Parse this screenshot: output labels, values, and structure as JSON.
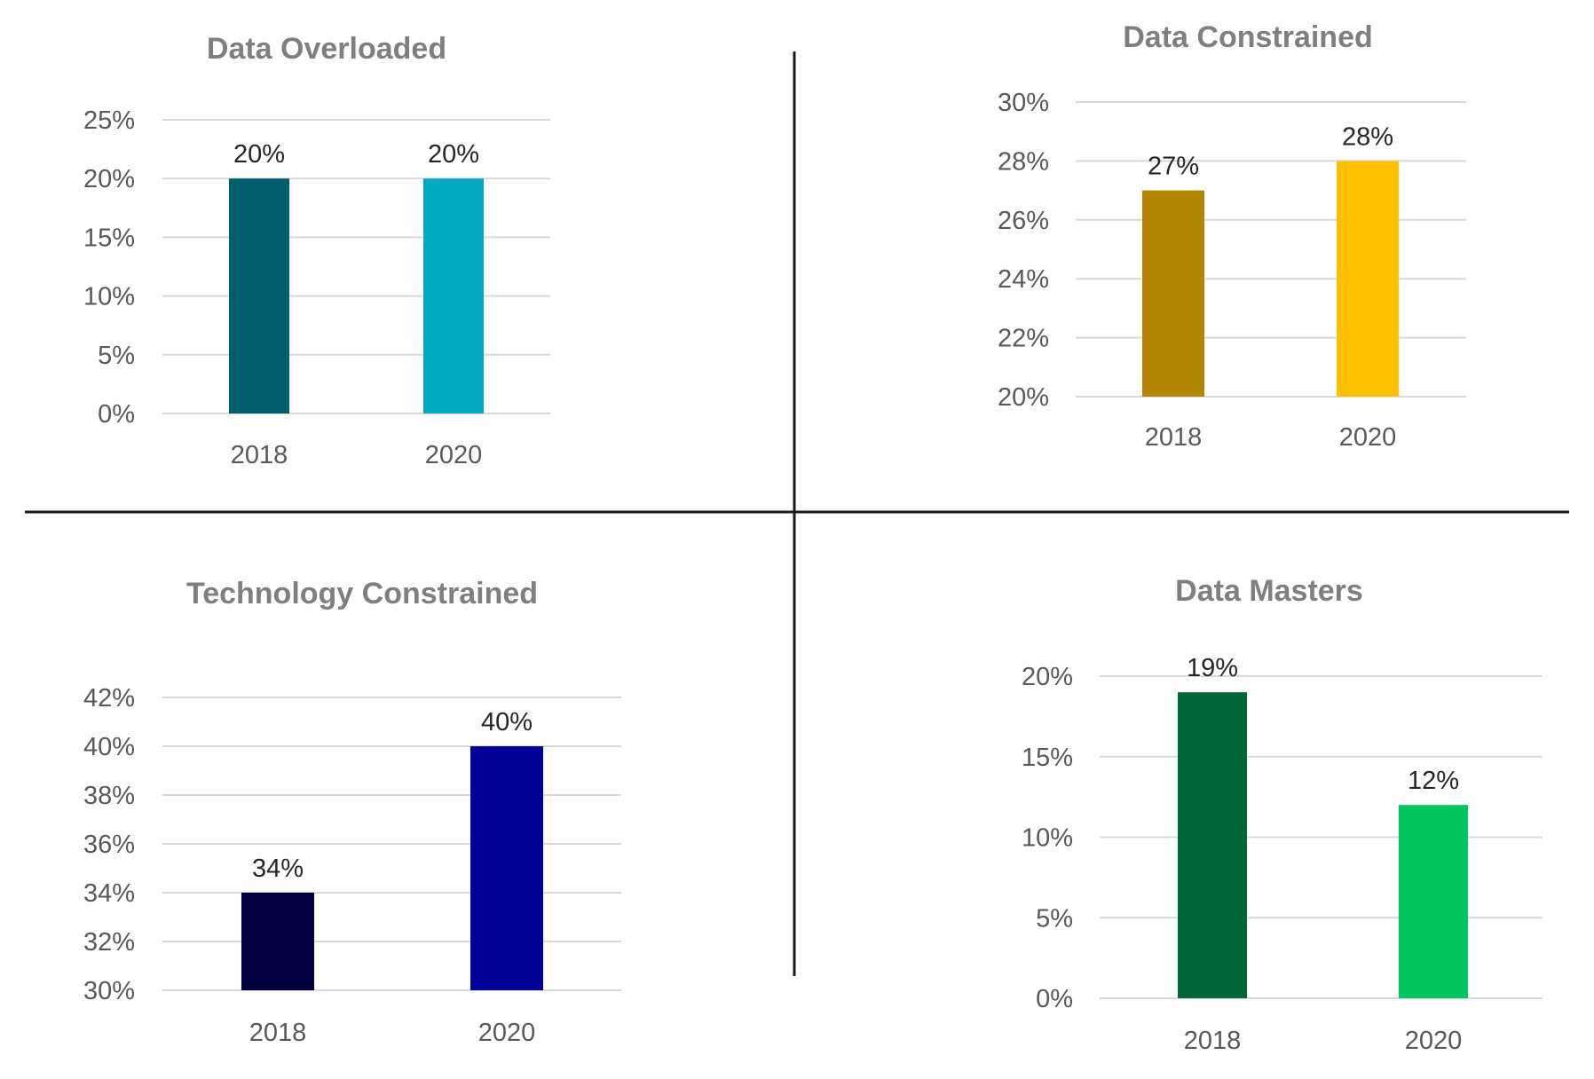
{
  "chart_data": [
    {
      "type": "bar",
      "title": "Data Overloaded",
      "categories": [
        "2018",
        "2020"
      ],
      "values": [
        20,
        20
      ],
      "value_labels": [
        "20%",
        "20%"
      ],
      "ylim": [
        0,
        25
      ],
      "yticks": [
        0,
        5,
        10,
        15,
        20,
        25
      ],
      "ytick_labels": [
        "0%",
        "5%",
        "10%",
        "15%",
        "20%",
        "25%"
      ],
      "colors": [
        "#005f6b",
        "#00a9c1"
      ],
      "grid": true,
      "legend": "none",
      "xlabel": "",
      "ylabel": ""
    },
    {
      "type": "bar",
      "title": "Data Constrained",
      "categories": [
        "2018",
        "2020"
      ],
      "values": [
        27,
        28
      ],
      "value_labels": [
        "27%",
        "28%"
      ],
      "ylim": [
        20,
        30
      ],
      "yticks": [
        20,
        22,
        24,
        26,
        28,
        30
      ],
      "ytick_labels": [
        "20%",
        "22%",
        "24%",
        "26%",
        "28%",
        "30%"
      ],
      "colors": [
        "#b38600",
        "#ffc000"
      ],
      "grid": true,
      "legend": "none",
      "xlabel": "",
      "ylabel": ""
    },
    {
      "type": "bar",
      "title": "Technology Constrained",
      "categories": [
        "2018",
        "2020"
      ],
      "values": [
        34,
        40
      ],
      "value_labels": [
        "34%",
        "40%"
      ],
      "ylim": [
        30,
        42
      ],
      "yticks": [
        30,
        32,
        34,
        36,
        38,
        40,
        42
      ],
      "ytick_labels": [
        "30%",
        "32%",
        "34%",
        "36%",
        "38%",
        "40%",
        "42%"
      ],
      "colors": [
        "#000040",
        "#000099"
      ],
      "grid": true,
      "legend": "none",
      "xlabel": "",
      "ylabel": ""
    },
    {
      "type": "bar",
      "title": "Data Masters",
      "categories": [
        "2018",
        "2020"
      ],
      "values": [
        19,
        12
      ],
      "value_labels": [
        "19%",
        "12%"
      ],
      "ylim": [
        0,
        20
      ],
      "yticks": [
        0,
        5,
        10,
        15,
        20
      ],
      "ytick_labels": [
        "0%",
        "5%",
        "10%",
        "15%",
        "20%"
      ],
      "colors": [
        "#006837",
        "#00c65e"
      ],
      "grid": true,
      "legend": "none",
      "xlabel": "",
      "ylabel": ""
    }
  ]
}
